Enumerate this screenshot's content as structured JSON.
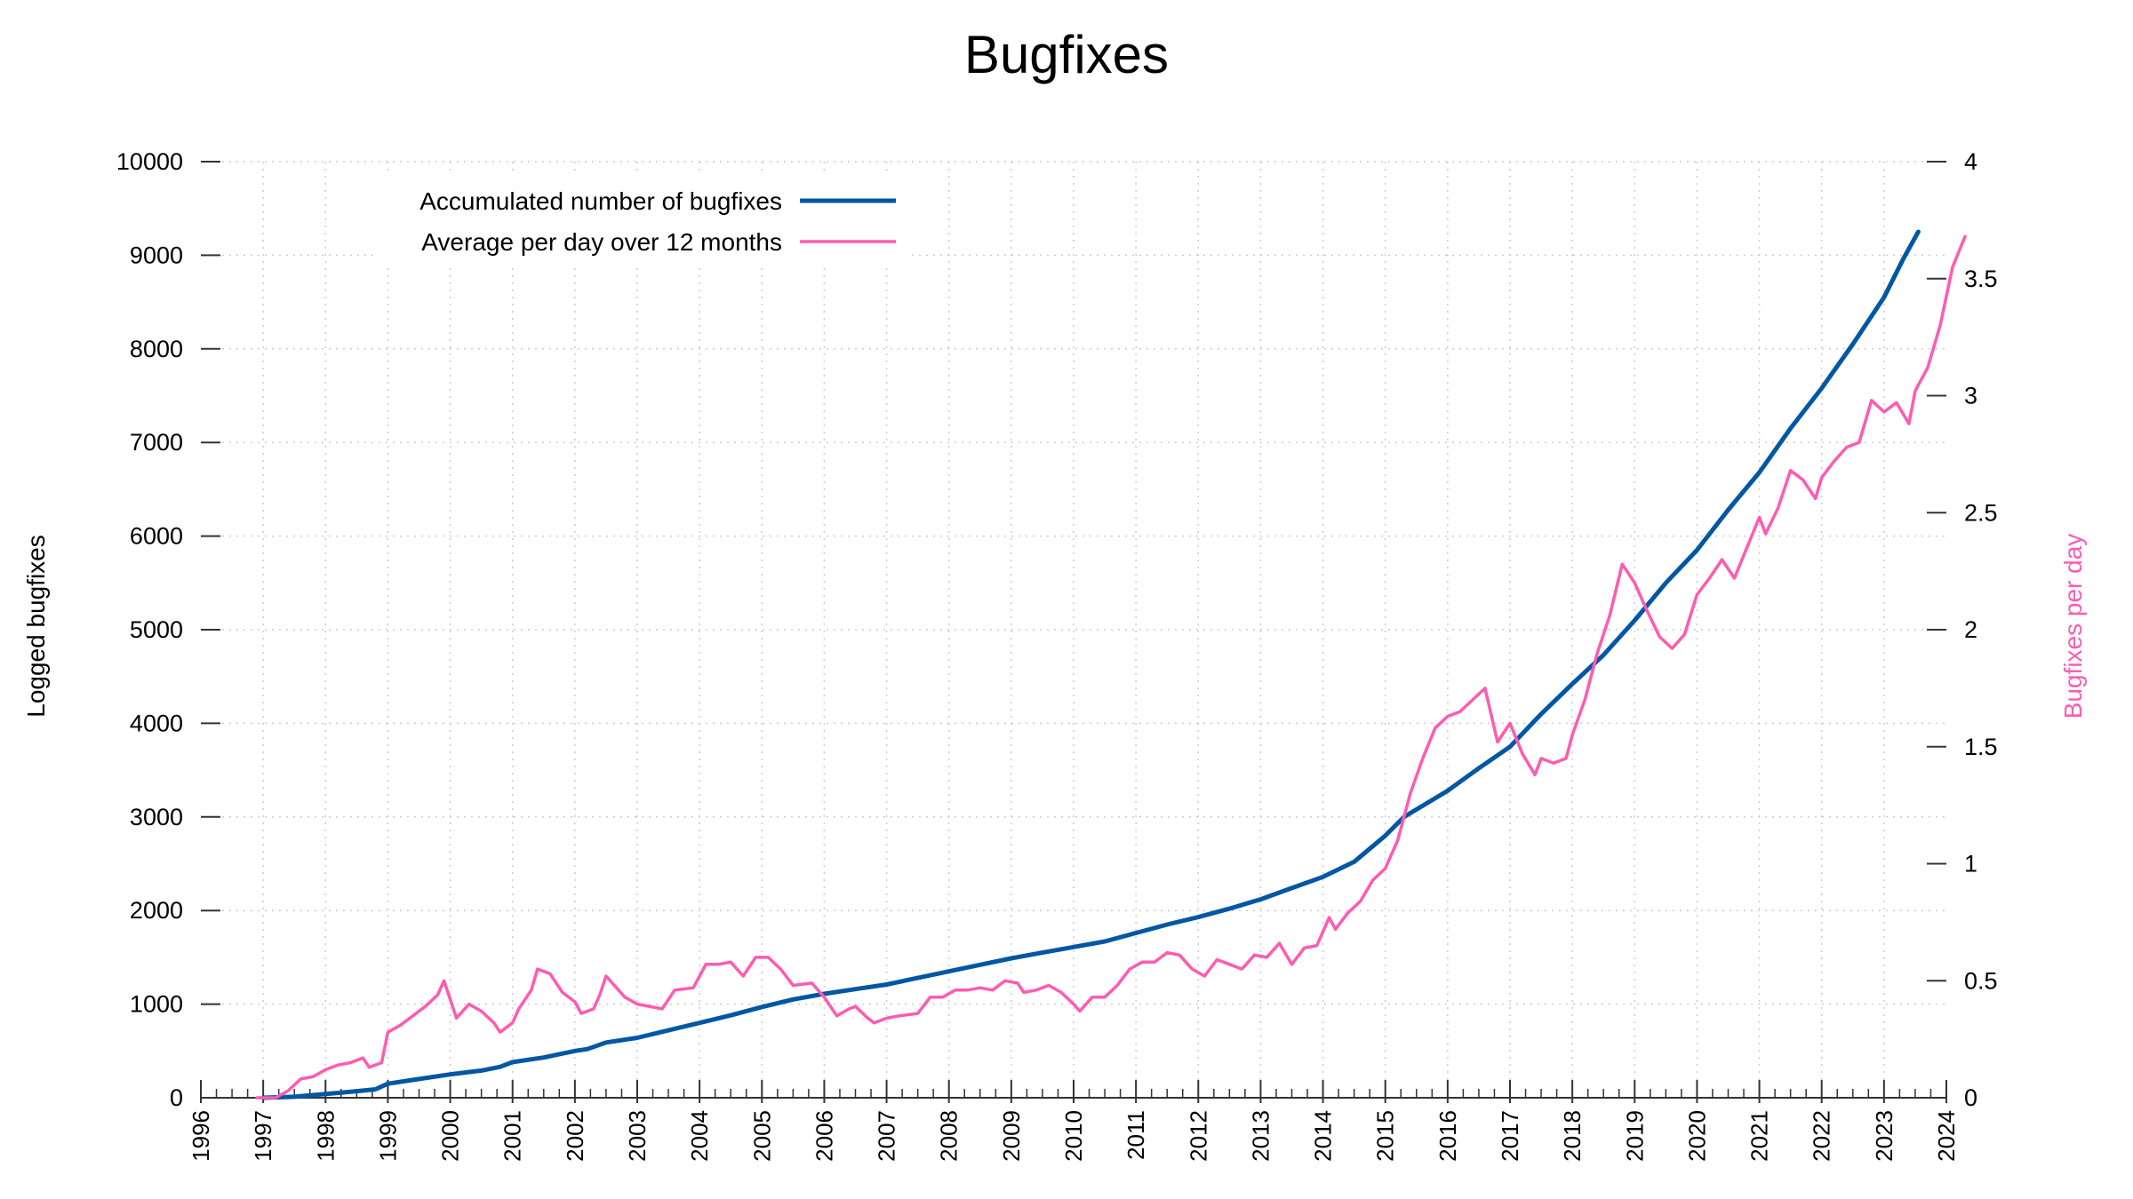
{
  "chart_data": {
    "type": "line",
    "title": "Bugfixes",
    "ylabel_left": "Logged bugfixes",
    "ylabel_right": "Bugfixes per day",
    "xlim": [
      1996,
      2024
    ],
    "ylim_left": [
      0,
      10000
    ],
    "ylim_right": [
      0,
      4
    ],
    "x_ticks": [
      "1996",
      "1997",
      "1998",
      "1999",
      "2000",
      "2001",
      "2002",
      "2003",
      "2004",
      "2005",
      "2006",
      "2007",
      "2008",
      "2009",
      "2010",
      "2011",
      "2012",
      "2013",
      "2014",
      "2015",
      "2016",
      "2017",
      "2018",
      "2019",
      "2020",
      "2021",
      "2022",
      "2023",
      "2024"
    ],
    "y_left_ticks": [
      "0",
      "1000",
      "2000",
      "3000",
      "4000",
      "5000",
      "6000",
      "7000",
      "8000",
      "9000",
      "10000"
    ],
    "y_right_ticks": [
      "0",
      "0.5",
      "1",
      "1.5",
      "2",
      "2.5",
      "3",
      "3.5",
      "4"
    ],
    "grid": true,
    "legend_position": "top-left",
    "colors": {
      "accumulated": "#0057a3",
      "average": "#ff5bb0",
      "right_axis_label": "#ff5bb0",
      "grid": "#cccccc"
    },
    "series": [
      {
        "name": "Accumulated number of bugfixes",
        "axis": "left",
        "points": [
          [
            1997.0,
            0
          ],
          [
            1997.5,
            10
          ],
          [
            1998.0,
            40
          ],
          [
            1998.5,
            70
          ],
          [
            1998.8,
            90
          ],
          [
            1999.0,
            150
          ],
          [
            1999.5,
            200
          ],
          [
            2000.0,
            250
          ],
          [
            2000.5,
            290
          ],
          [
            2000.8,
            330
          ],
          [
            2001.0,
            380
          ],
          [
            2001.5,
            430
          ],
          [
            2002.0,
            500
          ],
          [
            2002.2,
            520
          ],
          [
            2002.5,
            590
          ],
          [
            2003.0,
            640
          ],
          [
            2003.5,
            720
          ],
          [
            2004.0,
            800
          ],
          [
            2004.5,
            880
          ],
          [
            2005.0,
            970
          ],
          [
            2005.5,
            1050
          ],
          [
            2006.0,
            1110
          ],
          [
            2006.5,
            1160
          ],
          [
            2007.0,
            1210
          ],
          [
            2007.5,
            1280
          ],
          [
            2008.0,
            1350
          ],
          [
            2008.5,
            1420
          ],
          [
            2009.0,
            1490
          ],
          [
            2009.5,
            1550
          ],
          [
            2010.0,
            1610
          ],
          [
            2010.5,
            1670
          ],
          [
            2011.0,
            1760
          ],
          [
            2011.5,
            1850
          ],
          [
            2012.0,
            1930
          ],
          [
            2012.5,
            2020
          ],
          [
            2013.0,
            2120
          ],
          [
            2013.5,
            2240
          ],
          [
            2014.0,
            2360
          ],
          [
            2014.5,
            2520
          ],
          [
            2015.0,
            2800
          ],
          [
            2015.3,
            3000
          ],
          [
            2015.5,
            3080
          ],
          [
            2016.0,
            3280
          ],
          [
            2016.5,
            3520
          ],
          [
            2017.0,
            3750
          ],
          [
            2017.5,
            4100
          ],
          [
            2018.0,
            4420
          ],
          [
            2018.5,
            4730
          ],
          [
            2019.0,
            5100
          ],
          [
            2019.5,
            5500
          ],
          [
            2020.0,
            5850
          ],
          [
            2020.5,
            6280
          ],
          [
            2021.0,
            6680
          ],
          [
            2021.5,
            7150
          ],
          [
            2022.0,
            7580
          ],
          [
            2022.5,
            8050
          ],
          [
            2023.0,
            8550
          ],
          [
            2023.3,
            8950
          ],
          [
            2023.55,
            9250
          ]
        ]
      },
      {
        "name": "Average per day over 12 months",
        "axis": "right",
        "points": [
          [
            1996.9,
            0.0
          ],
          [
            1997.2,
            0.0
          ],
          [
            1997.4,
            0.03
          ],
          [
            1997.6,
            0.08
          ],
          [
            1997.8,
            0.09
          ],
          [
            1998.0,
            0.12
          ],
          [
            1998.2,
            0.14
          ],
          [
            1998.4,
            0.15
          ],
          [
            1998.6,
            0.17
          ],
          [
            1998.7,
            0.13
          ],
          [
            1998.9,
            0.15
          ],
          [
            1999.0,
            0.28
          ],
          [
            1999.2,
            0.31
          ],
          [
            1999.4,
            0.35
          ],
          [
            1999.6,
            0.39
          ],
          [
            1999.8,
            0.44
          ],
          [
            1999.9,
            0.5
          ],
          [
            2000.0,
            0.42
          ],
          [
            2000.1,
            0.34
          ],
          [
            2000.3,
            0.4
          ],
          [
            2000.5,
            0.37
          ],
          [
            2000.7,
            0.32
          ],
          [
            2000.8,
            0.28
          ],
          [
            2001.0,
            0.32
          ],
          [
            2001.1,
            0.38
          ],
          [
            2001.3,
            0.46
          ],
          [
            2001.4,
            0.55
          ],
          [
            2001.6,
            0.53
          ],
          [
            2001.8,
            0.45
          ],
          [
            2002.0,
            0.41
          ],
          [
            2002.1,
            0.36
          ],
          [
            2002.3,
            0.38
          ],
          [
            2002.4,
            0.44
          ],
          [
            2002.5,
            0.52
          ],
          [
            2002.8,
            0.43
          ],
          [
            2003.0,
            0.4
          ],
          [
            2003.4,
            0.38
          ],
          [
            2003.6,
            0.46
          ],
          [
            2003.9,
            0.47
          ],
          [
            2004.1,
            0.57
          ],
          [
            2004.3,
            0.57
          ],
          [
            2004.5,
            0.58
          ],
          [
            2004.7,
            0.52
          ],
          [
            2004.9,
            0.6
          ],
          [
            2005.1,
            0.6
          ],
          [
            2005.3,
            0.55
          ],
          [
            2005.5,
            0.48
          ],
          [
            2005.8,
            0.49
          ],
          [
            2006.0,
            0.43
          ],
          [
            2006.2,
            0.35
          ],
          [
            2006.4,
            0.38
          ],
          [
            2006.5,
            0.39
          ],
          [
            2006.7,
            0.34
          ],
          [
            2006.8,
            0.32
          ],
          [
            2007.0,
            0.34
          ],
          [
            2007.2,
            0.35
          ],
          [
            2007.5,
            0.36
          ],
          [
            2007.7,
            0.43
          ],
          [
            2007.9,
            0.43
          ],
          [
            2008.1,
            0.46
          ],
          [
            2008.3,
            0.46
          ],
          [
            2008.5,
            0.47
          ],
          [
            2008.7,
            0.46
          ],
          [
            2008.9,
            0.5
          ],
          [
            2009.1,
            0.49
          ],
          [
            2009.2,
            0.45
          ],
          [
            2009.4,
            0.46
          ],
          [
            2009.6,
            0.48
          ],
          [
            2009.8,
            0.45
          ],
          [
            2010.0,
            0.4
          ],
          [
            2010.1,
            0.37
          ],
          [
            2010.3,
            0.43
          ],
          [
            2010.5,
            0.43
          ],
          [
            2010.7,
            0.48
          ],
          [
            2010.9,
            0.55
          ],
          [
            2011.1,
            0.58
          ],
          [
            2011.3,
            0.58
          ],
          [
            2011.5,
            0.62
          ],
          [
            2011.7,
            0.61
          ],
          [
            2011.9,
            0.55
          ],
          [
            2012.1,
            0.52
          ],
          [
            2012.3,
            0.59
          ],
          [
            2012.5,
            0.57
          ],
          [
            2012.7,
            0.55
          ],
          [
            2012.9,
            0.61
          ],
          [
            2013.1,
            0.6
          ],
          [
            2013.3,
            0.66
          ],
          [
            2013.5,
            0.57
          ],
          [
            2013.7,
            0.64
          ],
          [
            2013.9,
            0.65
          ],
          [
            2014.1,
            0.77
          ],
          [
            2014.2,
            0.72
          ],
          [
            2014.4,
            0.79
          ],
          [
            2014.6,
            0.84
          ],
          [
            2014.8,
            0.93
          ],
          [
            2015.0,
            0.98
          ],
          [
            2015.2,
            1.1
          ],
          [
            2015.4,
            1.3
          ],
          [
            2015.6,
            1.45
          ],
          [
            2015.8,
            1.58
          ],
          [
            2016.0,
            1.63
          ],
          [
            2016.2,
            1.65
          ],
          [
            2016.4,
            1.7
          ],
          [
            2016.6,
            1.75
          ],
          [
            2016.8,
            1.52
          ],
          [
            2017.0,
            1.6
          ],
          [
            2017.2,
            1.47
          ],
          [
            2017.4,
            1.38
          ],
          [
            2017.5,
            1.45
          ],
          [
            2017.7,
            1.43
          ],
          [
            2017.9,
            1.45
          ],
          [
            2018.0,
            1.55
          ],
          [
            2018.2,
            1.7
          ],
          [
            2018.4,
            1.9
          ],
          [
            2018.6,
            2.06
          ],
          [
            2018.8,
            2.28
          ],
          [
            2019.0,
            2.2
          ],
          [
            2019.2,
            2.08
          ],
          [
            2019.4,
            1.97
          ],
          [
            2019.6,
            1.92
          ],
          [
            2019.8,
            1.98
          ],
          [
            2020.0,
            2.15
          ],
          [
            2020.2,
            2.22
          ],
          [
            2020.4,
            2.3
          ],
          [
            2020.6,
            2.22
          ],
          [
            2020.8,
            2.35
          ],
          [
            2021.0,
            2.48
          ],
          [
            2021.1,
            2.41
          ],
          [
            2021.3,
            2.52
          ],
          [
            2021.5,
            2.68
          ],
          [
            2021.7,
            2.64
          ],
          [
            2021.9,
            2.56
          ],
          [
            2022.0,
            2.65
          ],
          [
            2022.2,
            2.72
          ],
          [
            2022.4,
            2.78
          ],
          [
            2022.6,
            2.8
          ],
          [
            2022.8,
            2.98
          ],
          [
            2023.0,
            2.93
          ],
          [
            2023.2,
            2.97
          ],
          [
            2023.4,
            2.88
          ],
          [
            2023.5,
            3.02
          ],
          [
            2023.7,
            3.12
          ],
          [
            2023.9,
            3.3
          ],
          [
            2024.1,
            3.55
          ],
          [
            2024.3,
            3.68
          ]
        ]
      }
    ]
  }
}
